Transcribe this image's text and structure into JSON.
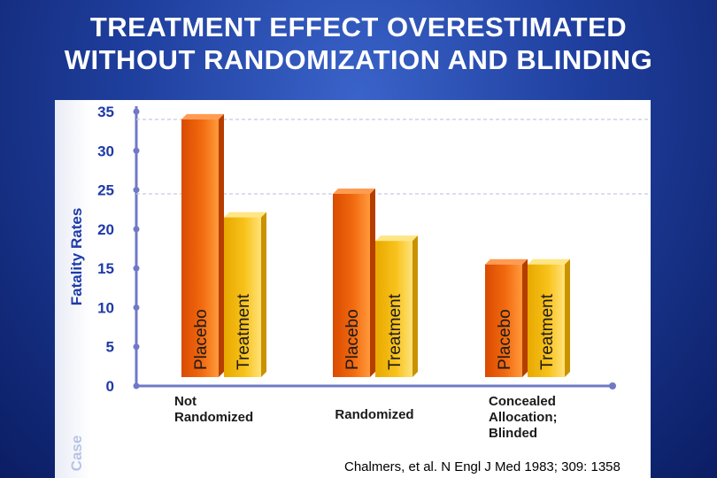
{
  "title_lines": [
    "TREATMENT EFFECT OVERESTIMATED",
    "WITHOUT RANDOMIZATION AND BLINDING"
  ],
  "citation": "Chalmers, et al. N Engl J Med 1983; 309: 1358",
  "y_axis_ghost_text": "Case",
  "colors": {
    "placebo": "#f26a0f",
    "treatment": "#f8c21a",
    "axis": "#6f79c7",
    "label": "#1e3aa8",
    "group_label": "#1a1a1a"
  },
  "chart_data": {
    "type": "bar",
    "title": "TREATMENT EFFECT OVERESTIMATED WITHOUT RANDOMIZATION AND BLINDING",
    "xlabel": "",
    "ylabel": "Fatality Rates",
    "ylim": [
      0,
      35
    ],
    "yticks": [
      "0",
      "5",
      "10",
      "15",
      "20",
      "25",
      "30",
      "35"
    ],
    "categories": [
      "Not\nRandomized",
      "Randomized",
      "Concealed\nAllocation;\nBlinded"
    ],
    "series": [
      {
        "name": "Placebo",
        "values": [
          34,
          24.5,
          15.5
        ]
      },
      {
        "name": "Treatment",
        "values": [
          21.5,
          18.5,
          15.5
        ]
      }
    ],
    "grid": false
  }
}
